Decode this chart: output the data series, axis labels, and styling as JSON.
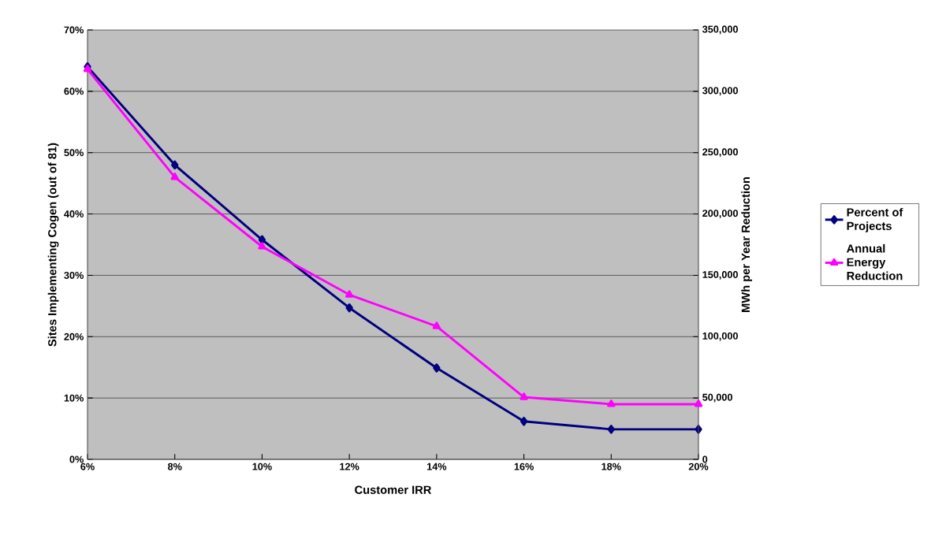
{
  "chart_data": {
    "type": "line",
    "xlabel": "Customer IRR",
    "ylabel": "Sites Implementing Cogen (out of 81)",
    "y2label": "MWh per Year Reduction",
    "x": [
      6,
      8,
      10,
      12,
      14,
      16,
      18,
      20
    ],
    "series": [
      {
        "name": "Percent of Projects",
        "color": "#000080",
        "marker": "diamond",
        "values": [
          64.0,
          48.0,
          35.8,
          24.7,
          14.9,
          6.2,
          4.9,
          4.9
        ]
      },
      {
        "name": "Annual Energy Reduction",
        "color": "#ff00ff",
        "marker": "triangle",
        "axis": "y2",
        "values": [
          318000,
          230000,
          173400,
          134200,
          108500,
          50700,
          45000,
          45000
        ]
      }
    ],
    "xlim": [
      6,
      20
    ],
    "xticks": [
      {
        "value": 6,
        "label": "6%"
      },
      {
        "value": 8,
        "label": "8%"
      },
      {
        "value": 10,
        "label": "10%"
      },
      {
        "value": 12,
        "label": "12%"
      },
      {
        "value": 14,
        "label": "14%"
      },
      {
        "value": 16,
        "label": "16%"
      },
      {
        "value": 18,
        "label": "18%"
      },
      {
        "value": 20,
        "label": "20%"
      }
    ],
    "ylim": [
      0,
      70
    ],
    "yticks": [
      {
        "value": 0,
        "label": "0%"
      },
      {
        "value": 10,
        "label": "10%"
      },
      {
        "value": 20,
        "label": "20%"
      },
      {
        "value": 30,
        "label": "30%"
      },
      {
        "value": 40,
        "label": "40%"
      },
      {
        "value": 50,
        "label": "50%"
      },
      {
        "value": 60,
        "label": "60%"
      },
      {
        "value": 70,
        "label": "70%"
      }
    ],
    "y2lim": [
      0,
      350000
    ],
    "y2ticks": [
      0,
      {
        "value": 50000,
        "label": "50,000"
      },
      {
        "value": 100000,
        "label": "100,000"
      },
      {
        "value": 150000,
        "label": "150,000"
      },
      {
        "value": 200000,
        "label": "200,000"
      },
      {
        "value": 250000,
        "label": "250,000"
      },
      {
        "value": 300000,
        "label": "300,000"
      },
      {
        "value": 350000,
        "label": "350,000"
      }
    ],
    "grid": "y",
    "legend": "right",
    "line_style": "solid"
  }
}
